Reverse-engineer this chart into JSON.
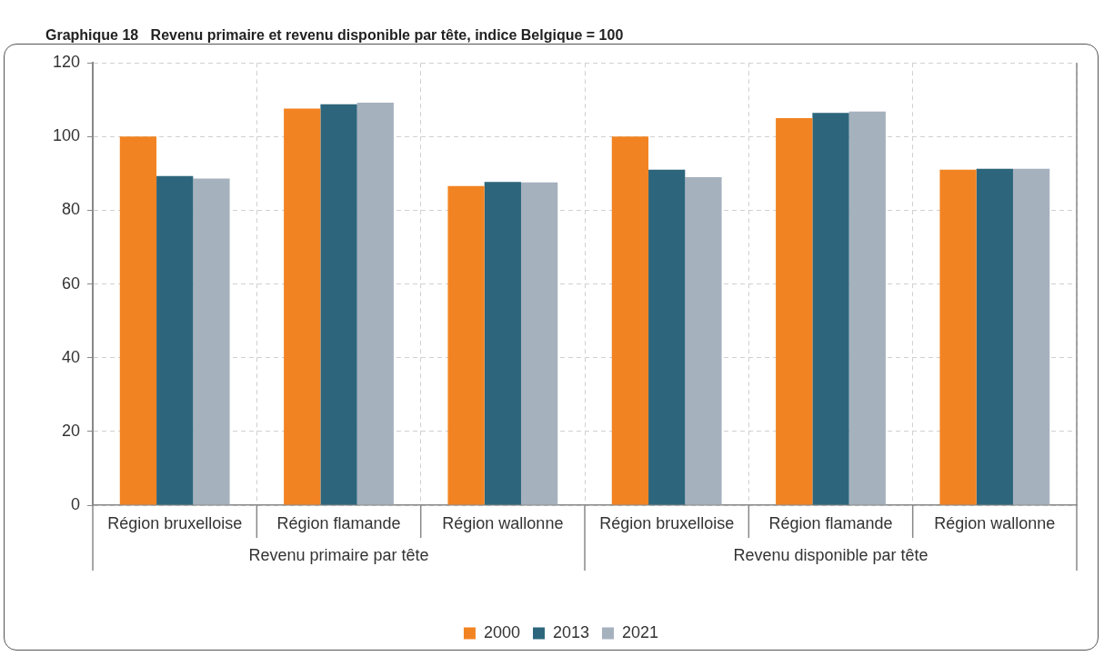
{
  "chart_data": {
    "type": "bar",
    "title": "Graphique 18   Revenu primaire et revenu disponible par tête, indice Belgique = 100",
    "categories": [
      "Région bruxelloise",
      "Région flamande",
      "Région wallonne",
      "Région bruxelloise",
      "Région flamande",
      "Région wallonne"
    ],
    "annotations": [
      "Revenu primaire par tête",
      "Revenu disponible par tête"
    ],
    "series": [
      {
        "name": "2000",
        "color": "#f28322",
        "values": [
          100,
          107.6,
          86.6,
          100,
          105.0,
          91.0
        ]
      },
      {
        "name": "2013",
        "color": "#2d667c",
        "values": [
          89.3,
          108.8,
          87.7,
          91.0,
          106.4,
          91.3
        ]
      },
      {
        "name": "2021",
        "color": "#a6b1be",
        "values": [
          88.6,
          109.2,
          87.6,
          89.0,
          106.8,
          91.3
        ]
      }
    ],
    "ylim": [
      0,
      120
    ],
    "yticks": [
      0,
      20,
      40,
      60,
      80,
      100,
      120
    ],
    "grid": true,
    "legend": "bottom"
  }
}
